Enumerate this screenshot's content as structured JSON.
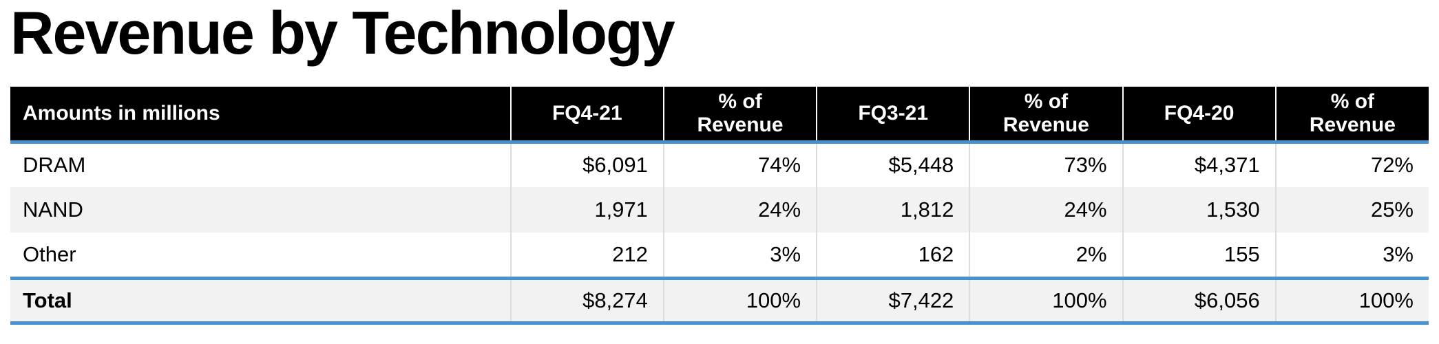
{
  "page": {
    "title": "Revenue by Technology"
  },
  "table": {
    "columns": [
      "Amounts in millions",
      "FQ4-21",
      "% of\nRevenue",
      "FQ3-21",
      "% of\nRevenue",
      "FQ4-20",
      "% of\nRevenue"
    ],
    "rows": [
      {
        "label": "DRAM",
        "values": [
          "$6,091",
          "74%",
          "$5,448",
          "73%",
          "$4,371",
          "72%"
        ]
      },
      {
        "label": "NAND",
        "values": [
          "1,971",
          "24%",
          "1,812",
          "24%",
          "1,530",
          "25%"
        ]
      },
      {
        "label": "Other",
        "values": [
          "212",
          "3%",
          "162",
          "2%",
          "155",
          "3%"
        ]
      },
      {
        "label": "Total",
        "values": [
          "$8,274",
          "100%",
          "$7,422",
          "100%",
          "$6,056",
          "100%"
        ]
      }
    ]
  },
  "chart_data": {
    "type": "table",
    "title": "Revenue by Technology",
    "units_note": "Amounts in millions",
    "columns": [
      "FQ4-21",
      "% of Revenue",
      "FQ3-21",
      "% of Revenue",
      "FQ4-20",
      "% of Revenue"
    ],
    "rows": [
      [
        "DRAM",
        6091,
        "74%",
        5448,
        "73%",
        4371,
        "72%"
      ],
      [
        "NAND",
        1971,
        "24%",
        1812,
        "24%",
        1530,
        "25%"
      ],
      [
        "Other",
        212,
        "3%",
        162,
        "2%",
        155,
        "3%"
      ],
      [
        "Total",
        8274,
        "100%",
        7422,
        "100%",
        6056,
        "100%"
      ]
    ]
  },
  "colors": {
    "accent_blue": "#4691d2",
    "header_bg": "#000000",
    "header_text": "#ffffff",
    "zebra_row": "#f2f2f2",
    "column_separator": "#dcdcdc"
  }
}
